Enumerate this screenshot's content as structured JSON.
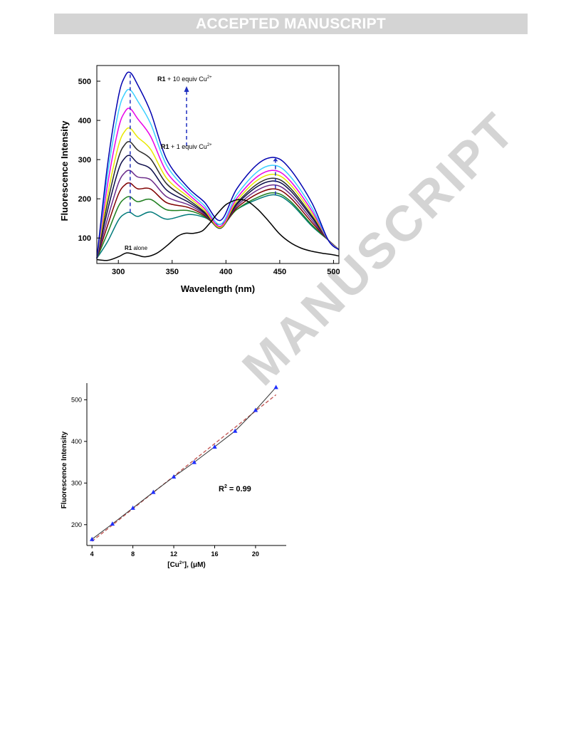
{
  "banner": "ACCEPTED MANUSCRIPT",
  "watermark": "MANUSCRIPT",
  "colors": {
    "watermark": "#d4d4d4",
    "banner_bg": "#d4d4d4",
    "arrow": "#1f2fbf",
    "fit_line": "#c0504d",
    "marker": "#1f2fff"
  },
  "chart_data": [
    {
      "type": "line",
      "xlabel": "Wavelength (nm)",
      "ylabel": "Fluorescence Intensity",
      "xlim": [
        280,
        505
      ],
      "ylim": [
        35,
        540
      ],
      "xticks": [
        300,
        350,
        400,
        450,
        500
      ],
      "yticks": [
        100,
        200,
        300,
        400,
        500
      ],
      "grid": false,
      "annotations": {
        "top_label_bold": "R1",
        "top_label_rest": " + 10 equiv Cu",
        "top_label_sup": "2+",
        "mid_label_bold": "R1",
        "mid_label_rest": " + 1 equiv Cu",
        "mid_label_sup": "2+",
        "alone_label_bold": "R1",
        "alone_label_rest": " alone"
      },
      "free_ligand": {
        "name": "R1 alone",
        "color": "#000000",
        "x": [
          280,
          290,
          300,
          308,
          318,
          325,
          335,
          345,
          355,
          362,
          370,
          378,
          385,
          392,
          400,
          408,
          413,
          420,
          430,
          440,
          450,
          460,
          470,
          480,
          490,
          500,
          505
        ],
        "y": [
          45,
          43,
          52,
          62,
          56,
          52,
          60,
          80,
          104,
          112,
          112,
          118,
          138,
          162,
          185,
          196,
          198,
          194,
          172,
          142,
          110,
          88,
          74,
          66,
          61,
          57,
          54
        ]
      },
      "titration_series": [
        {
          "color": "#007a7a",
          "peak1": 165,
          "valley1": 148,
          "shoulder": 160,
          "valley2": 135,
          "peak2": 210
        },
        {
          "color": "#1f7f1f",
          "peak1": 205,
          "valley1": 172,
          "shoulder": 170,
          "valley2": 130,
          "peak2": 215
        },
        {
          "color": "#800000",
          "peak1": 240,
          "valley1": 190,
          "shoulder": 178,
          "valley2": 128,
          "peak2": 225
        },
        {
          "color": "#6b2b8a",
          "peak1": 272,
          "valley1": 205,
          "shoulder": 185,
          "valley2": 127,
          "peak2": 235
        },
        {
          "color": "#0c0c4a",
          "peak1": 310,
          "valley1": 222,
          "shoulder": 192,
          "valley2": 126,
          "peak2": 245
        },
        {
          "color": "#2b2b2b",
          "peak1": 345,
          "valley1": 238,
          "shoulder": 198,
          "valley2": 125,
          "peak2": 252
        },
        {
          "color": "#e8e800",
          "peak1": 380,
          "valley1": 252,
          "shoulder": 205,
          "valley2": 127,
          "peak2": 262
        },
        {
          "color": "#e800e8",
          "peak1": 430,
          "valley1": 268,
          "shoulder": 212,
          "valley2": 130,
          "peak2": 272
        },
        {
          "color": "#3ad0ff",
          "peak1": 478,
          "valley1": 285,
          "shoulder": 220,
          "valley2": 135,
          "peak2": 285
        },
        {
          "color": "#0000b0",
          "peak1": 522,
          "valley1": 300,
          "shoulder": 228,
          "valley2": 145,
          "peak2": 305
        }
      ]
    },
    {
      "type": "scatter",
      "xlabel_pre": "[Cu",
      "xlabel_sup": "2+",
      "xlabel_post": "], (μM)",
      "ylabel": "Fluorescence Intensity",
      "xlim": [
        3.5,
        23
      ],
      "ylim": [
        150,
        540
      ],
      "xticks": [
        4,
        8,
        12,
        16,
        20
      ],
      "yticks": [
        200,
        300,
        400,
        500
      ],
      "grid": false,
      "r2_pre": "R",
      "r2_sup": "2",
      "r2_post": " = 0.99",
      "x": [
        4,
        6,
        8,
        10,
        12,
        14,
        16,
        18,
        20,
        22
      ],
      "y": [
        165,
        202,
        240,
        278,
        315,
        350,
        387,
        425,
        475,
        530
      ],
      "fit": {
        "x": [
          4,
          22
        ],
        "y": [
          160,
          512
        ]
      }
    }
  ]
}
